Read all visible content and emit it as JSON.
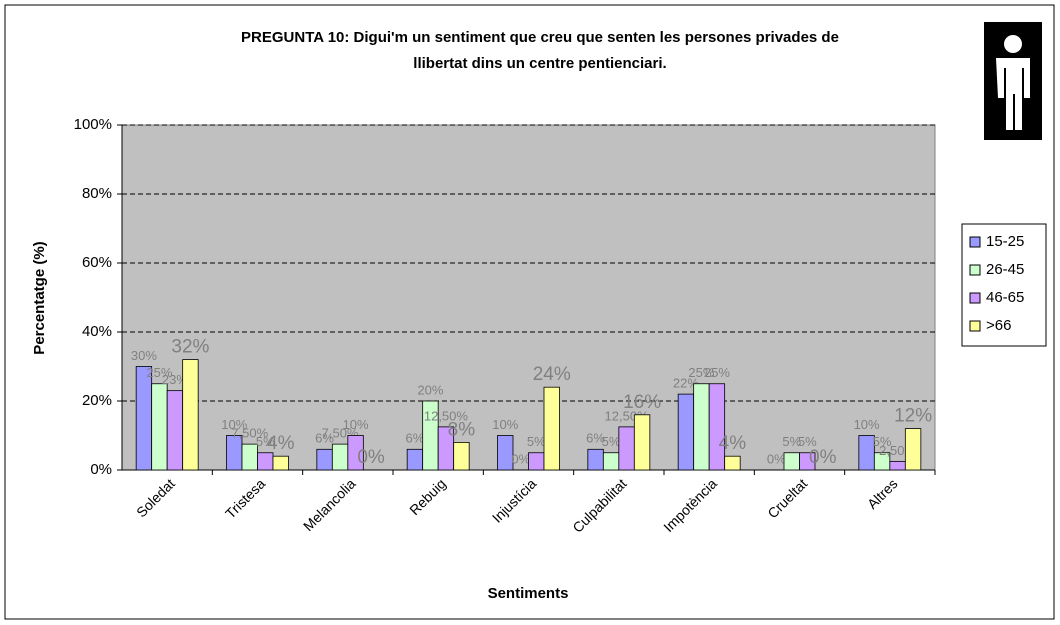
{
  "chart_data": {
    "type": "bar",
    "title": "PREGUNTA 10: Digui'm un sentiment que creu que senten les persones privades de llibertat dins un centre pentienciari.",
    "y_label": "Percentatge (%)",
    "x_label": "Sentiments",
    "categories": [
      "Soledat",
      "Tristesa",
      "Melancolia",
      "Rebuig",
      "Injustícia",
      "Culpabilitat",
      "Impotència",
      "Crueltat",
      "Altres"
    ],
    "series": [
      {
        "name": "15-25",
        "color": "#9999ff",
        "values": [
          30,
          10,
          6,
          6,
          10,
          6,
          22,
          0,
          10
        ],
        "value_labels": [
          "30%",
          "10%",
          "6%",
          "6%",
          "10%",
          "6%",
          "22%",
          "0%",
          "10%"
        ]
      },
      {
        "name": "26-45",
        "color": "#ccffcc",
        "values": [
          25,
          7.5,
          7.5,
          20,
          0,
          5,
          25,
          5,
          5
        ],
        "value_labels": [
          "25%",
          "7,50%",
          "7,50%",
          "20%",
          "0%",
          "5%",
          "25%",
          "5%",
          "5%"
        ]
      },
      {
        "name": "46-65",
        "color": "#cc99ff",
        "values": [
          23,
          5,
          10,
          12.5,
          5,
          12.5,
          25,
          5,
          2.5
        ],
        "value_labels": [
          "23%",
          "5%",
          "10%",
          "12,50%",
          "5%",
          "12,50%",
          "25%",
          "5%",
          "2,50%"
        ]
      },
      {
        "name": ">66",
        "color": "#ffff99",
        "values": [
          32,
          4,
          0,
          8,
          24,
          16,
          4,
          0,
          12
        ],
        "value_labels": [
          "32%",
          "4%",
          "0%",
          "8%",
          "24%",
          "16%",
          "4%",
          "0%",
          "12%"
        ]
      }
    ],
    "ylim": [
      0,
      100
    ],
    "yticks": [
      {
        "value": 0,
        "label": "0%"
      },
      {
        "value": 20,
        "label": "20%"
      },
      {
        "value": 40,
        "label": "40%"
      },
      {
        "value": 60,
        "label": "60%"
      },
      {
        "value": 80,
        "label": "80%"
      },
      {
        "value": 100,
        "label": "100%"
      }
    ],
    "grid": true,
    "legend": "right"
  }
}
